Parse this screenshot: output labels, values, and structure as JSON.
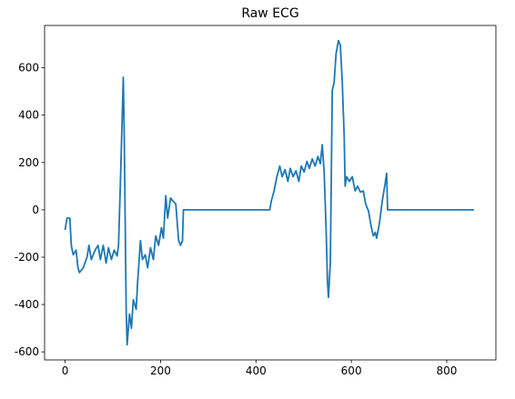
{
  "chart_data": {
    "type": "line",
    "title": "Raw ECG",
    "color": "#1f77b4",
    "x": [
      0,
      4,
      10,
      13,
      17,
      23,
      27,
      30,
      38,
      46,
      50,
      55,
      63,
      69,
      74,
      80,
      86,
      91,
      97,
      103,
      109,
      112,
      116,
      122,
      124,
      128,
      130,
      135,
      139,
      143,
      149,
      152,
      158,
      162,
      168,
      173,
      179,
      185,
      190,
      196,
      202,
      206,
      211,
      215,
      221,
      227,
      232,
      238,
      242,
      246,
      248,
      429,
      432,
      438,
      444,
      450,
      455,
      461,
      467,
      472,
      478,
      484,
      490,
      495,
      501,
      507,
      512,
      518,
      524,
      530,
      535,
      539,
      543,
      547,
      550,
      552,
      556,
      560,
      564,
      568,
      573,
      577,
      581,
      585,
      587,
      590,
      596,
      602,
      608,
      613,
      619,
      625,
      630,
      636,
      642,
      646,
      650,
      653,
      659,
      665,
      670,
      674,
      676,
      857
    ],
    "values": [
      -85,
      -35,
      -35,
      -150,
      -190,
      -170,
      -245,
      -265,
      -245,
      -200,
      -150,
      -210,
      -170,
      -150,
      -210,
      -150,
      -225,
      -160,
      -210,
      -170,
      -195,
      -150,
      120,
      560,
      310,
      -420,
      -570,
      -440,
      -500,
      -380,
      -420,
      -305,
      -130,
      -210,
      -190,
      -245,
      -160,
      -210,
      -110,
      -150,
      -75,
      -120,
      60,
      -35,
      50,
      35,
      25,
      -130,
      -150,
      -130,
      0,
      0,
      35,
      80,
      140,
      185,
      140,
      170,
      120,
      175,
      140,
      165,
      120,
      185,
      160,
      205,
      175,
      215,
      185,
      225,
      195,
      275,
      160,
      -75,
      -305,
      -370,
      -225,
      505,
      540,
      660,
      715,
      695,
      540,
      310,
      100,
      140,
      120,
      140,
      80,
      100,
      75,
      80,
      25,
      -5,
      -75,
      -110,
      -95,
      -120,
      -55,
      40,
      100,
      155,
      0,
      0
    ],
    "xlim": [
      -43,
      903
    ],
    "ylim": [
      -634,
      779
    ],
    "xticks": [
      0,
      200,
      400,
      600,
      800
    ],
    "yticks": [
      -600,
      -400,
      -200,
      0,
      200,
      400,
      600
    ]
  }
}
